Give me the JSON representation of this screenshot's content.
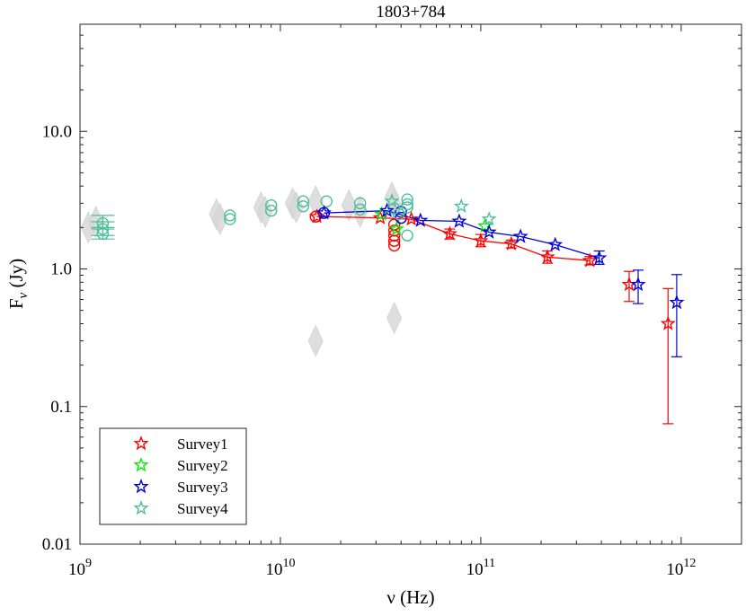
{
  "chart_data": {
    "type": "scatter",
    "title": "1803+784",
    "xlabel": "ν (Hz)",
    "ylabel_main": "F",
    "ylabel_sub": "ν",
    "ylabel_unit": " (Jy)",
    "x_scale": "log",
    "y_scale": "log",
    "xlim": [
      1000000000.0,
      2000000000000.0
    ],
    "ylim": [
      0.01,
      60
    ],
    "x_ticks": [
      {
        "value": 1000000000.0,
        "base": "10",
        "exp": "9"
      },
      {
        "value": 10000000000.0,
        "base": "10",
        "exp": "10"
      },
      {
        "value": 100000000000.0,
        "base": "10",
        "exp": "11"
      },
      {
        "value": 1000000000000.0,
        "base": "10",
        "exp": "12"
      }
    ],
    "y_ticks": [
      {
        "value": 0.01,
        "label": "0.01"
      },
      {
        "value": 0.1,
        "label": "0.1"
      },
      {
        "value": 1,
        "label": "1.0"
      },
      {
        "value": 10,
        "label": "10.0"
      }
    ],
    "legend_position": "bottom-left",
    "colors": {
      "survey1": "#ff0000",
      "survey2": "#00ee00",
      "survey3": "#0000dd",
      "survey4": "#4dbf9a",
      "archival": "#d9d9d9"
    },
    "series": [
      {
        "name": "Survey1",
        "color": "#ff0000",
        "marker": "star",
        "connected": true,
        "points": [
          [
            15200000000.0,
            2.4,
            null,
            null
          ],
          [
            31500000000.0,
            2.35,
            null,
            null
          ],
          [
            45000000000.0,
            2.3,
            null,
            null
          ],
          [
            70000000000.0,
            1.8,
            1.65,
            1.95
          ],
          [
            100000000000.0,
            1.6,
            1.45,
            1.78
          ],
          [
            142000000000.0,
            1.52,
            1.42,
            1.62
          ],
          [
            215000000000.0,
            1.22,
            1.1,
            1.35
          ],
          [
            350000000000.0,
            1.15,
            1.07,
            1.23
          ],
          [
            550000000000.0,
            0.77,
            0.58,
            0.96
          ],
          [
            860000000000.0,
            0.4,
            0.075,
            0.72
          ]
        ]
      },
      {
        "name": "Survey2",
        "color": "#00ee00",
        "marker": "star",
        "connected": false,
        "points": [
          [
            32000000000.0,
            2.5,
            null,
            null
          ],
          [
            38000000000.0,
            1.95,
            null,
            null
          ],
          [
            105000000000.0,
            2.05,
            null,
            null
          ]
        ]
      },
      {
        "name": "Survey3",
        "color": "#0000dd",
        "marker": "star",
        "connected": true,
        "points": [
          [
            16500000000.0,
            2.55,
            null,
            null
          ],
          [
            34000000000.0,
            2.65,
            null,
            null
          ],
          [
            50000000000.0,
            2.25,
            null,
            null
          ],
          [
            78000000000.0,
            2.22,
            null,
            null
          ],
          [
            110000000000.0,
            1.85,
            null,
            null
          ],
          [
            158000000000.0,
            1.72,
            null,
            null
          ],
          [
            235000000000.0,
            1.5,
            null,
            null
          ],
          [
            390000000000.0,
            1.2,
            1.08,
            1.35
          ],
          [
            610000000000.0,
            0.77,
            0.56,
            0.98
          ],
          [
            950000000000.0,
            0.57,
            0.23,
            0.91
          ]
        ]
      },
      {
        "name": "Survey4",
        "color": "#4dbf9a",
        "marker": "star",
        "connected": false,
        "points": [
          [
            36000000000.0,
            3.1,
            null,
            null
          ],
          [
            80000000000.0,
            2.85,
            null,
            null
          ],
          [
            110000000000.0,
            2.3,
            null,
            null
          ]
        ]
      }
    ],
    "circle_points": [
      {
        "color": "#ff0000",
        "points": [
          [
            15000000000.0,
            2.4
          ],
          [
            37000000000.0,
            2.1
          ],
          [
            37000000000.0,
            1.9
          ],
          [
            37000000000.0,
            1.75
          ],
          [
            37000000000.0,
            1.6
          ],
          [
            37000000000.0,
            1.48
          ]
        ]
      },
      {
        "color": "#0000dd",
        "points": [
          [
            16500000000.0,
            2.55
          ],
          [
            40000000000.0,
            2.6
          ],
          [
            40000000000.0,
            2.35
          ]
        ]
      },
      {
        "color": "#4dbf9a",
        "points": [
          [
            1300000000.0,
            2.15
          ],
          [
            1300000000.0,
            1.95
          ],
          [
            1300000000.0,
            1.8
          ],
          [
            5600000000.0,
            2.45
          ],
          [
            5600000000.0,
            2.3
          ],
          [
            9000000000.0,
            2.9
          ],
          [
            9000000000.0,
            2.65
          ],
          [
            13000000000.0,
            3.1
          ],
          [
            13000000000.0,
            2.85
          ],
          [
            17000000000.0,
            3.1
          ],
          [
            25000000000.0,
            3.0
          ],
          [
            25000000000.0,
            2.7
          ],
          [
            37000000000.0,
            2.75
          ],
          [
            43000000000.0,
            3.2
          ],
          [
            43000000000.0,
            2.95
          ],
          [
            43000000000.0,
            2.8
          ],
          [
            43000000000.0,
            1.75
          ],
          [
            39000000000.0,
            2.5
          ]
        ]
      }
    ],
    "archival_diamonds": [
      [
        1100000000.0,
        2.0
      ],
      [
        1200000000.0,
        2.2
      ],
      [
        4800000000.0,
        2.5
      ],
      [
        5000000000.0,
        2.3
      ],
      [
        8000000000.0,
        2.8
      ],
      [
        8400000000.0,
        2.6
      ],
      [
        11500000000.0,
        3.0
      ],
      [
        12000000000.0,
        2.8
      ],
      [
        15000000000.0,
        3.1
      ],
      [
        15000000000.0,
        0.3
      ],
      [
        22000000000.0,
        2.9
      ],
      [
        25000000000.0,
        2.6
      ],
      [
        36000000000.0,
        3.3
      ],
      [
        37000000000.0,
        2.9
      ],
      [
        37000000000.0,
        0.44
      ]
    ],
    "survey4_errorbars": [
      [
        1300000000.0,
        2.15,
        1.95,
        2.45
      ],
      [
        1300000000.0,
        1.95,
        1.75,
        2.2
      ],
      [
        1300000000.0,
        1.8,
        1.65,
        2.0
      ]
    ]
  }
}
